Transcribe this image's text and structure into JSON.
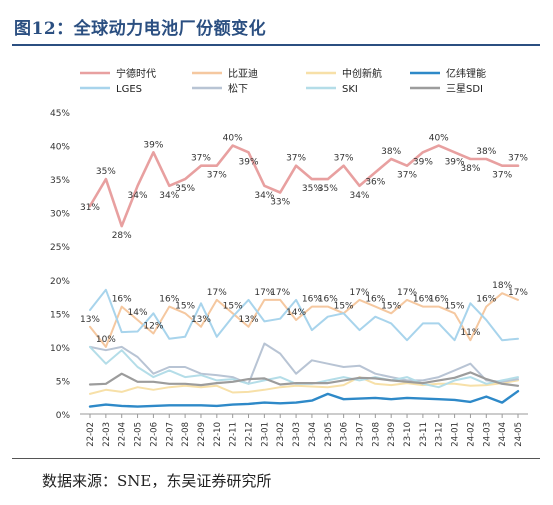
{
  "title": "图12：全球动力电池厂份额变化",
  "source": "数据来源：SNE，东吴证券研究所",
  "chart_data": {
    "type": "line",
    "y_ticks": [
      "0%",
      "5%",
      "10%",
      "15%",
      "20%",
      "25%",
      "30%",
      "35%",
      "40%",
      "45%"
    ],
    "ylim": [
      0,
      45
    ],
    "grid": false,
    "legend_position": "top",
    "categories": [
      "22-02",
      "22-03",
      "22-04",
      "22-05",
      "22-06",
      "22-07",
      "22-08",
      "22-09",
      "22-10",
      "22-11",
      "22-12",
      "23-01",
      "23-02",
      "23-03",
      "23-04",
      "23-05",
      "23-06",
      "23-07",
      "23-08",
      "23-09",
      "23-10",
      "23-11",
      "23-12",
      "24-01",
      "24-02",
      "24-03",
      "24-04",
      "24-05"
    ],
    "series": [
      {
        "name": "宁德时代",
        "color": "#e8a0a0",
        "width": 2.6,
        "values": [
          31,
          35,
          28,
          34,
          39,
          34,
          35,
          37,
          37,
          40,
          39,
          34,
          33,
          37,
          35,
          35,
          37,
          34,
          36,
          38,
          37,
          39,
          40,
          39,
          38,
          38,
          37,
          37
        ],
        "labels": [
          "31%",
          "35%",
          "28%",
          "34%",
          "39%",
          "34%",
          "35%",
          "37%",
          "37%",
          "40%",
          "39%",
          "34%",
          "33%",
          "37%",
          "35%",
          "35%",
          "37%",
          "34%",
          "36%",
          "38%",
          "37%",
          "39%",
          "40%",
          "39%",
          "38%",
          "38%",
          "37%",
          "37%"
        ]
      },
      {
        "name": "比亚迪",
        "color": "#f5c8a0",
        "width": 2,
        "values": [
          13,
          10,
          16,
          14,
          12,
          16,
          15,
          13,
          17,
          15,
          13,
          17,
          17,
          14,
          16,
          16,
          15,
          17,
          16,
          15,
          17,
          16,
          16,
          15,
          11,
          16,
          18,
          17
        ],
        "labels": [
          "13%",
          "10%",
          "16%",
          "14%",
          "12%",
          "16%",
          "15%",
          "13%",
          "17%",
          "15%",
          "13%",
          "17%",
          "17%",
          "14%",
          "16%",
          "16%",
          "15%",
          "17%",
          "16%",
          "15%",
          "17%",
          "16%",
          "16%",
          "15%",
          "11%",
          "16%",
          "18%",
          "17%"
        ]
      },
      {
        "name": "中创新航",
        "color": "#f7e0a8",
        "width": 2,
        "values": [
          3.0,
          3.6,
          3.3,
          4.0,
          3.6,
          4.0,
          4.2,
          4.0,
          4.2,
          3.2,
          3.3,
          3.6,
          4.0,
          4.2,
          4.1,
          4.0,
          4.3,
          5.5,
          4.5,
          4.3,
          4.6,
          4.3,
          4.5,
          4.5,
          4.2,
          4.3,
          4.6,
          5.0
        ]
      },
      {
        "name": "亿纬锂能",
        "color": "#2e89c8",
        "width": 2.4,
        "values": [
          1.1,
          1.4,
          1.2,
          1.1,
          1.2,
          1.3,
          1.3,
          1.3,
          1.2,
          1.4,
          1.5,
          1.7,
          1.6,
          1.7,
          2.0,
          3.0,
          2.2,
          2.3,
          2.4,
          2.2,
          2.4,
          2.3,
          2.2,
          2.1,
          1.8,
          2.6,
          1.7,
          3.4
        ]
      },
      {
        "name": "LGES",
        "color": "#a8d4ec",
        "width": 2,
        "values": [
          15.5,
          18.5,
          12.2,
          12.3,
          15.0,
          11.2,
          11.5,
          16.5,
          11.5,
          14.5,
          17.0,
          13.8,
          14.2,
          17.0,
          12.5,
          14.5,
          15.0,
          12.5,
          14.5,
          13.5,
          11.0,
          13.5,
          13.5,
          11.0,
          16.5,
          14.0,
          11.0,
          11.2
        ]
      },
      {
        "name": "松下",
        "color": "#b8c4d4",
        "width": 2,
        "values": [
          10.0,
          9.5,
          10.0,
          8.5,
          6.0,
          7.0,
          7.0,
          6.0,
          5.8,
          5.5,
          4.5,
          10.5,
          9.0,
          6.0,
          8.0,
          7.5,
          7.0,
          7.2,
          6.0,
          5.5,
          5.0,
          5.0,
          5.5,
          6.5,
          7.5,
          5.0,
          4.8,
          5.2
        ]
      },
      {
        "name": "SKI",
        "color": "#b4dde8",
        "width": 2,
        "values": [
          10.0,
          7.5,
          9.5,
          7.0,
          5.5,
          6.5,
          5.5,
          5.8,
          5.0,
          5.2,
          4.5,
          5.0,
          5.5,
          4.5,
          4.5,
          5.0,
          5.5,
          5.0,
          5.5,
          5.0,
          5.5,
          4.5,
          4.0,
          5.0,
          5.5,
          4.5,
          5.0,
          5.5
        ]
      },
      {
        "name": "三星SDI",
        "color": "#9c9c9c",
        "width": 2.2,
        "values": [
          4.4,
          4.5,
          6.0,
          4.8,
          4.8,
          4.5,
          4.5,
          4.3,
          4.6,
          4.8,
          5.2,
          5.3,
          4.4,
          4.6,
          4.6,
          4.6,
          5.0,
          5.4,
          5.3,
          5.0,
          4.8,
          4.6,
          5.0,
          5.4,
          6.2,
          5.2,
          4.5,
          4.2
        ]
      }
    ]
  }
}
